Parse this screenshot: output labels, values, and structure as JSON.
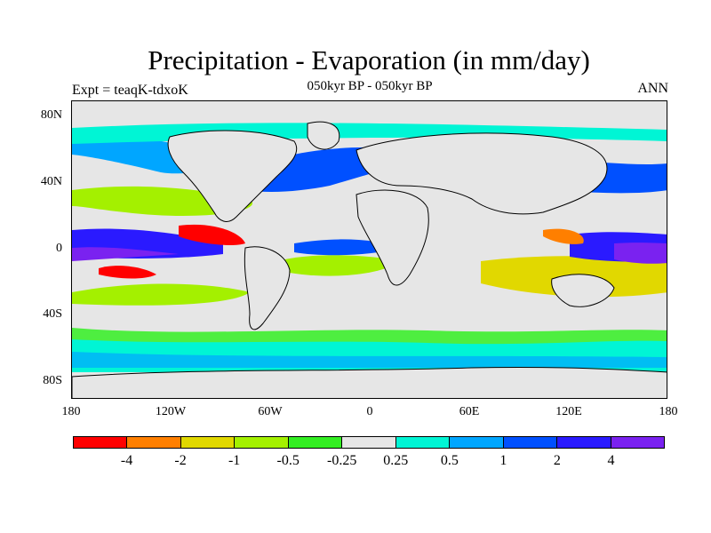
{
  "title": "Precipitation - Evaporation (in mm/day)",
  "subtitle": "050kyr BP - 050kyr BP",
  "left_label": "Expt = teaqK-tdxoK",
  "right_label": "ANN",
  "map": {
    "y_ticks": [
      "80N",
      "40N",
      "0",
      "40S",
      "80S"
    ],
    "x_ticks": [
      "180",
      "120W",
      "60W",
      "0",
      "60E",
      "120E",
      "180"
    ],
    "background_color": "#e6e6e6"
  },
  "colorbar": {
    "colors": [
      "#ff0000",
      "#ff7f00",
      "#e1d800",
      "#a4f000",
      "#33ee22",
      "#e6e6e6",
      "#00f5d5",
      "#00a6ff",
      "#0050ff",
      "#2a1aff",
      "#7a22f0"
    ],
    "labels": [
      "-4",
      "-2",
      "-1",
      "-0.5",
      "-0.25",
      "0.25",
      "0.5",
      "1",
      "2",
      "4"
    ]
  }
}
